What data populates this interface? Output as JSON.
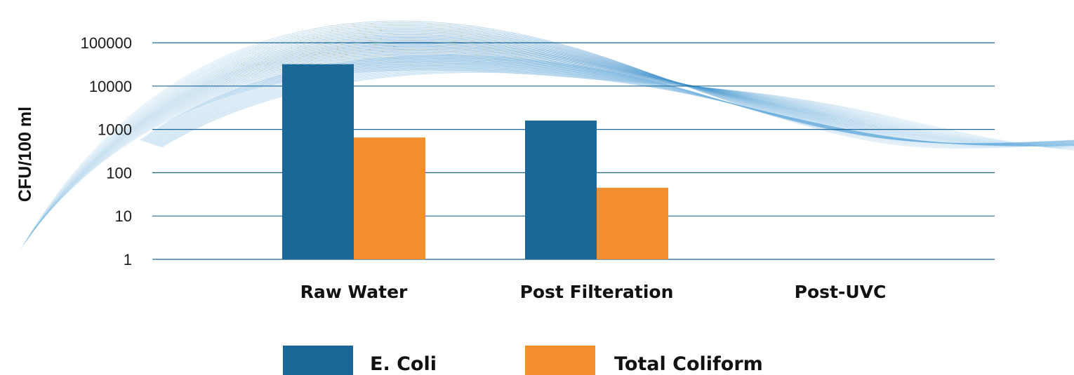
{
  "chart_data": {
    "type": "bar",
    "categories": [
      "Raw Water",
      "Post Filteration",
      "Post-UVC"
    ],
    "series": [
      {
        "name": "E. Coli",
        "color": "#1b6898",
        "values": [
          32000,
          1600,
          null
        ]
      },
      {
        "name": "Total Coliform",
        "color": "#f28f2c",
        "values": [
          650,
          45,
          null
        ]
      }
    ],
    "ylabel": "CFU/100 ml",
    "xlabel": "",
    "yscale": "log",
    "ylim": [
      1,
      100000
    ],
    "yticks": [
      "1",
      "10",
      "100",
      "1000",
      "10000",
      "100000"
    ],
    "grid": true,
    "grid_color": "#1b6898",
    "legend_position": "bottom"
  }
}
